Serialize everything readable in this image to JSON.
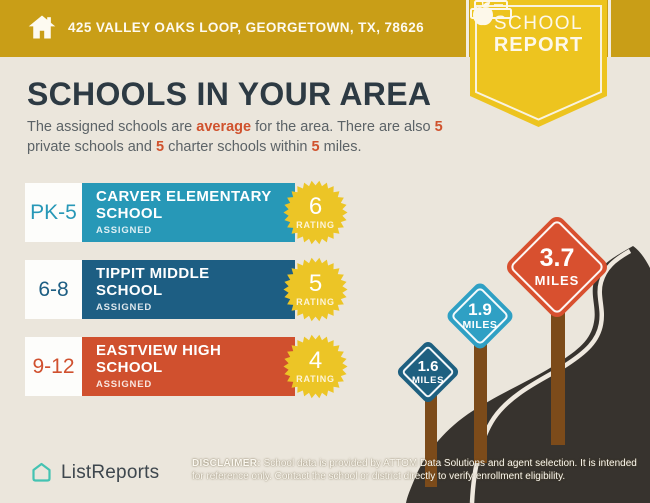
{
  "colors": {
    "header_gold": "#c99e17",
    "ribbon_yellow": "#edc41f",
    "badge_yellow": "#ecc526",
    "background": "#ebe6dc",
    "title_navy": "#2d3a43",
    "body_gray": "#5c6367",
    "highlight_orange": "#d0522d",
    "road_dark": "#37332e",
    "road_line": "#efe9df",
    "post_brown": "#7c4b1a",
    "brand_teal": "#44c3b2"
  },
  "header": {
    "address": "425 VALLEY OAKS LOOP, GEORGETOWN, TX, 78626",
    "badge_line1": "SCHOOL",
    "badge_line2": "REPORT"
  },
  "main": {
    "title": "SCHOOLS IN YOUR AREA",
    "subtitle_segments": [
      {
        "t": "The assigned schools are "
      },
      {
        "t": "average",
        "hl": true
      },
      {
        "t": " for the area. There are also "
      },
      {
        "t": "5",
        "hl": true
      },
      {
        "t": " private schools and "
      },
      {
        "t": "5",
        "hl": true
      },
      {
        "t": " charter schools within "
      },
      {
        "t": "5",
        "hl": true
      },
      {
        "t": " miles."
      }
    ]
  },
  "schools": [
    {
      "grades": "PK-5",
      "name": "CARVER ELEMENTARY SCHOOL",
      "status": "ASSIGNED",
      "rating": "6",
      "rating_label": "RATING",
      "color": "#2798b7"
    },
    {
      "grades": "6-8",
      "name": "TIPPIT MIDDLE SCHOOL",
      "status": "ASSIGNED",
      "rating": "5",
      "rating_label": "RATING",
      "color": "#1d5e83"
    },
    {
      "grades": "9-12",
      "name": "EASTVIEW HIGH SCHOOL",
      "status": "ASSIGNED",
      "rating": "4",
      "rating_label": "RATING",
      "color": "#d0502e"
    }
  ],
  "signs": [
    {
      "distance": "1.6",
      "unit": "MILES",
      "color": "#1e6080"
    },
    {
      "distance": "1.9",
      "unit": "MILES",
      "color": "#2fa0c4"
    },
    {
      "distance": "3.7",
      "unit": "MILES",
      "color": "#d8502f"
    }
  ],
  "footer": {
    "brand": "ListReports",
    "disclaimer_label": "DISCLAIMER:",
    "disclaimer_text": " School data is provided by ATTOM Data Solutions and agent selection. It is intended for reference only. Contact the school or district directly to verify enrollment eligibility."
  }
}
